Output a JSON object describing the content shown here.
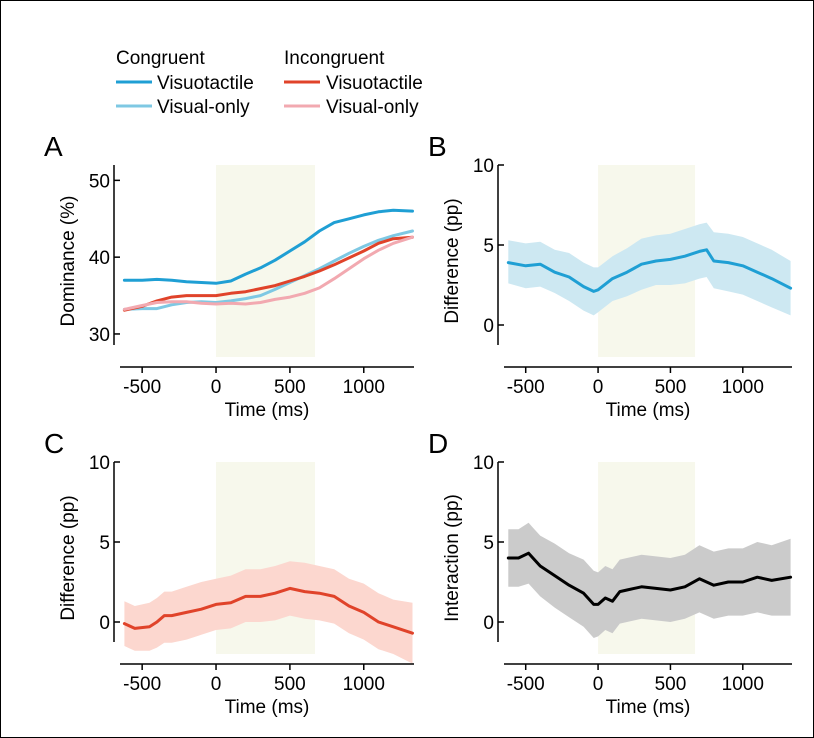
{
  "legend": {
    "groups": [
      {
        "heading": "Congruent",
        "entries": [
          {
            "label": "Visuotactile",
            "color": "#1f9fd4"
          },
          {
            "label": "Visual-only",
            "color": "#7ec8e3"
          }
        ]
      },
      {
        "heading": "Incongruent",
        "entries": [
          {
            "label": "Visuotactile",
            "color": "#e0432a"
          },
          {
            "label": "Visual-only",
            "color": "#f2a9b0"
          }
        ]
      }
    ]
  },
  "shade_color": "#f7f8ec",
  "chart_data": [
    {
      "panel": "A",
      "type": "line",
      "xlabel": "Time (ms)",
      "ylabel": "Dominance (%)",
      "xlim": [
        -650,
        1340
      ],
      "ylim": [
        27,
        52
      ],
      "xticks": [
        "-500",
        "0",
        "500",
        "1000"
      ],
      "xtick_values": [
        -500,
        0,
        500,
        1000
      ],
      "yticks": [
        "30",
        "40",
        "50"
      ],
      "ytick_values": [
        30,
        40,
        50
      ],
      "shaded_region": [
        0,
        670
      ],
      "series": [
        {
          "name": "Congruent Visuotactile",
          "color": "#1f9fd4",
          "x": [
            -620,
            -500,
            -400,
            -300,
            -200,
            -100,
            0,
            100,
            200,
            300,
            400,
            500,
            600,
            700,
            800,
            900,
            1000,
            1100,
            1200,
            1330
          ],
          "y": [
            37.0,
            37.0,
            37.1,
            37.0,
            36.8,
            36.7,
            36.6,
            36.9,
            37.8,
            38.6,
            39.6,
            40.8,
            42.0,
            43.4,
            44.5,
            45.0,
            45.5,
            45.9,
            46.1,
            46.0
          ]
        },
        {
          "name": "Congruent Visual-only",
          "color": "#7ec8e3",
          "x": [
            -620,
            -500,
            -400,
            -300,
            -200,
            -100,
            0,
            100,
            200,
            300,
            400,
            500,
            600,
            700,
            800,
            900,
            1000,
            1100,
            1200,
            1330
          ],
          "y": [
            33.2,
            33.3,
            33.3,
            33.8,
            34.1,
            34.2,
            34.1,
            34.3,
            34.6,
            35.0,
            35.8,
            36.7,
            37.6,
            38.5,
            39.5,
            40.5,
            41.4,
            42.2,
            42.8,
            43.4
          ]
        },
        {
          "name": "Incongruent Visuotactile",
          "color": "#e0432a",
          "x": [
            -620,
            -500,
            -400,
            -300,
            -200,
            -100,
            0,
            100,
            200,
            300,
            400,
            500,
            600,
            700,
            800,
            900,
            1000,
            1100,
            1200,
            1330
          ],
          "y": [
            33.1,
            33.6,
            34.3,
            34.8,
            35.0,
            35.0,
            35.0,
            35.3,
            35.5,
            35.9,
            36.3,
            36.9,
            37.5,
            38.2,
            39.0,
            39.9,
            40.8,
            41.8,
            42.4,
            42.6
          ]
        },
        {
          "name": "Incongruent Visual-only",
          "color": "#f2a9b0",
          "x": [
            -620,
            -500,
            -400,
            -300,
            -200,
            -100,
            0,
            100,
            200,
            300,
            400,
            500,
            600,
            700,
            800,
            900,
            1000,
            1100,
            1200,
            1330
          ],
          "y": [
            33.2,
            33.7,
            34.1,
            34.2,
            34.2,
            34.0,
            33.9,
            34.0,
            33.9,
            34.1,
            34.5,
            34.8,
            35.3,
            36.0,
            37.2,
            38.5,
            39.8,
            40.9,
            41.8,
            42.6
          ]
        }
      ]
    },
    {
      "panel": "B",
      "type": "area",
      "xlabel": "Time (ms)",
      "ylabel": "Difference (pp)",
      "xlim": [
        -650,
        1340
      ],
      "ylim": [
        -2,
        10
      ],
      "xticks": [
        "-500",
        "0",
        "500",
        "1000"
      ],
      "xtick_values": [
        -500,
        0,
        500,
        1000
      ],
      "yticks": [
        "0",
        "5",
        "10"
      ],
      "ytick_values": [
        0,
        5,
        10
      ],
      "shaded_region": [
        0,
        670
      ],
      "series": [
        {
          "name": "Congruent difference",
          "color": "#1f9fd4",
          "band_color": "#cde8f2",
          "x": [
            -620,
            -500,
            -400,
            -300,
            -200,
            -100,
            -30,
            0,
            100,
            200,
            300,
            400,
            500,
            600,
            700,
            750,
            800,
            900,
            1000,
            1100,
            1200,
            1330
          ],
          "y": [
            3.9,
            3.7,
            3.8,
            3.3,
            3.0,
            2.4,
            2.1,
            2.2,
            2.9,
            3.3,
            3.8,
            4.0,
            4.1,
            4.3,
            4.6,
            4.7,
            4.0,
            3.9,
            3.7,
            3.3,
            2.9,
            2.3
          ],
          "lower": [
            2.6,
            2.3,
            2.4,
            2.0,
            1.5,
            0.9,
            0.6,
            0.8,
            1.5,
            1.8,
            2.2,
            2.5,
            2.5,
            2.6,
            2.9,
            3.0,
            2.3,
            2.1,
            1.9,
            1.5,
            1.1,
            0.6
          ],
          "upper": [
            5.3,
            5.1,
            5.2,
            4.7,
            4.5,
            3.9,
            3.6,
            3.6,
            4.3,
            4.8,
            5.4,
            5.6,
            5.7,
            6.0,
            6.3,
            6.4,
            5.8,
            5.7,
            5.5,
            5.1,
            4.7,
            4.0
          ]
        }
      ]
    },
    {
      "panel": "C",
      "type": "area",
      "xlabel": "Time (ms)",
      "ylabel": "Difference (pp)",
      "xlim": [
        -650,
        1340
      ],
      "ylim": [
        -2,
        10
      ],
      "xticks": [
        "-500",
        "0",
        "500",
        "1000"
      ],
      "xtick_values": [
        -500,
        0,
        500,
        1000
      ],
      "yticks": [
        "0",
        "5",
        "10"
      ],
      "ytick_values": [
        0,
        5,
        10
      ],
      "shaded_region": [
        0,
        670
      ],
      "series": [
        {
          "name": "Incongruent difference",
          "color": "#e0432a",
          "band_color": "#fcd7cf",
          "x": [
            -620,
            -550,
            -450,
            -400,
            -350,
            -300,
            -200,
            -100,
            0,
            100,
            200,
            300,
            400,
            500,
            600,
            700,
            800,
            900,
            1000,
            1100,
            1200,
            1330
          ],
          "y": [
            -0.1,
            -0.4,
            -0.3,
            0.0,
            0.4,
            0.4,
            0.6,
            0.8,
            1.1,
            1.2,
            1.6,
            1.6,
            1.8,
            2.1,
            1.9,
            1.8,
            1.6,
            1.0,
            0.6,
            0.0,
            -0.3,
            -0.7
          ],
          "lower": [
            -1.5,
            -1.8,
            -1.8,
            -1.6,
            -1.3,
            -1.3,
            -1.1,
            -0.8,
            -0.5,
            -0.4,
            0.0,
            0.0,
            0.1,
            0.4,
            0.2,
            0.1,
            -0.1,
            -0.7,
            -1.1,
            -1.7,
            -2.0,
            -2.6
          ],
          "upper": [
            1.3,
            1.0,
            1.2,
            1.5,
            1.9,
            1.9,
            2.2,
            2.5,
            2.7,
            2.9,
            3.3,
            3.3,
            3.5,
            3.8,
            3.7,
            3.5,
            3.3,
            2.7,
            2.4,
            1.8,
            1.4,
            1.2
          ]
        }
      ]
    },
    {
      "panel": "D",
      "type": "area",
      "xlabel": "Time (ms)",
      "ylabel": "Interaction (pp)",
      "xlim": [
        -650,
        1340
      ],
      "ylim": [
        -2,
        10
      ],
      "xticks": [
        "-500",
        "0",
        "500",
        "1000"
      ],
      "xtick_values": [
        -500,
        0,
        500,
        1000
      ],
      "yticks": [
        "0",
        "5",
        "10"
      ],
      "ytick_values": [
        0,
        5,
        10
      ],
      "shaded_region": [
        0,
        670
      ],
      "series": [
        {
          "name": "Interaction",
          "color": "#000000",
          "band_color": "#cbcbcb",
          "x": [
            -620,
            -550,
            -480,
            -450,
            -400,
            -300,
            -200,
            -100,
            -30,
            0,
            50,
            100,
            150,
            200,
            300,
            400,
            500,
            600,
            700,
            800,
            900,
            1000,
            1100,
            1200,
            1330
          ],
          "y": [
            4.0,
            4.0,
            4.3,
            4.0,
            3.5,
            2.9,
            2.3,
            1.8,
            1.1,
            1.1,
            1.5,
            1.3,
            1.9,
            2.0,
            2.2,
            2.1,
            2.0,
            2.2,
            2.7,
            2.3,
            2.5,
            2.5,
            2.8,
            2.6,
            2.8
          ],
          "lower": [
            2.2,
            2.2,
            2.4,
            2.1,
            1.6,
            0.9,
            0.3,
            -0.3,
            -1.0,
            -0.9,
            -0.5,
            -0.7,
            -0.1,
            0.0,
            0.2,
            0.1,
            0.0,
            0.2,
            0.6,
            0.2,
            0.4,
            0.4,
            0.6,
            0.4,
            0.4
          ],
          "upper": [
            5.8,
            5.8,
            6.2,
            5.9,
            5.4,
            4.9,
            4.3,
            3.9,
            3.2,
            3.1,
            3.5,
            3.3,
            3.9,
            4.0,
            4.2,
            4.1,
            4.0,
            4.2,
            4.8,
            4.4,
            4.6,
            4.6,
            5.0,
            4.8,
            5.2
          ]
        }
      ]
    }
  ],
  "panel_labels": [
    "A",
    "B",
    "C",
    "D"
  ]
}
